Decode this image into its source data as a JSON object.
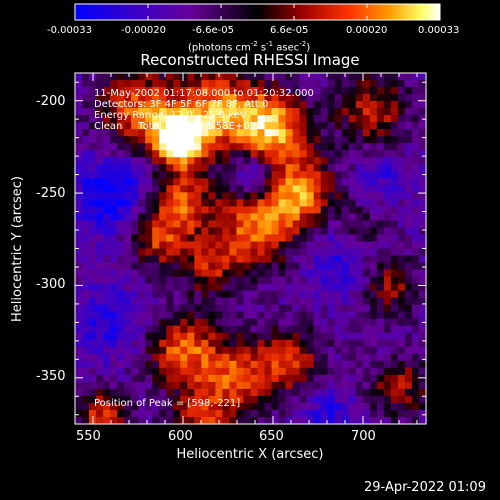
{
  "colorbar": {
    "ticks": [
      "-0.00033",
      "-0.00020",
      "-6.6e-05",
      "6.6e-05",
      "0.00020",
      "0.00033"
    ],
    "unit": "(photons cm",
    "unit_sup1": "-2",
    "unit_mid": " s",
    "unit_sup2": "-1",
    "unit_end": " asec",
    "unit_sup3": "-2",
    "unit_close": ")",
    "range": [
      -0.00033,
      0.00033
    ],
    "colors": [
      "#0000ff",
      "#3300cc",
      "#660099",
      "#000000",
      "#990000",
      "#ff3300",
      "#ff9900",
      "#ffff66",
      "#ffffff"
    ]
  },
  "chart_data": {
    "type": "heatmap",
    "title": "Reconstructed RHESSI Image",
    "xlabel": "Heliocentric X (arcsec)",
    "ylabel": "Heliocentric Y (arcsec)",
    "xlim": [
      540,
      735
    ],
    "ylim": [
      -375,
      -185
    ],
    "x_ticks": [
      550,
      600,
      650,
      700
    ],
    "y_ticks": [
      -200,
      -250,
      -300,
      -350
    ],
    "peak_position": [
      598,
      -221
    ],
    "grid": false
  },
  "overlay": {
    "line1": "11-May-2002 01:17:08.000 to 01:20:32.000",
    "line2": "Detectors: 3F 4F 5F 6F 7F 8F, Att 0",
    "line3": "Energy Range: 12.0 - 25.0 keV",
    "line4": "Clean     Total Counts: 1.58E+03",
    "peak": "Position of Peak = [598,-221]"
  },
  "footer": {
    "timestamp": "29-Apr-2022 01:09"
  }
}
